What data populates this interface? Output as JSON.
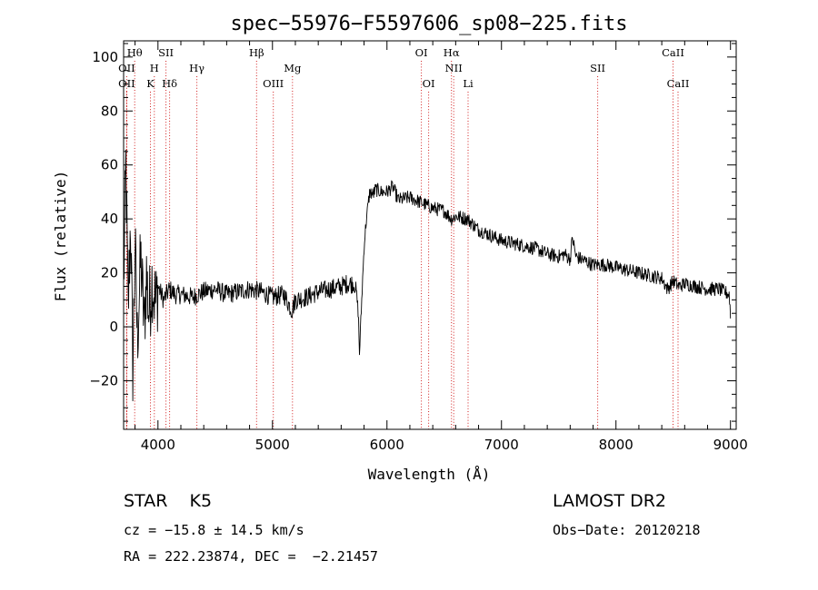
{
  "chart_data": {
    "type": "line",
    "title": "spec−55976−F5597606_sp08−225.fits",
    "xlabel": "Wavelength (Å)",
    "ylabel": "Flux (relative)",
    "xlim": [
      3700,
      9050
    ],
    "ylim": [
      -38,
      106
    ],
    "x_ticks": [
      4000,
      5000,
      6000,
      7000,
      8000,
      9000
    ],
    "x_tick_labels": [
      "4000",
      "5000",
      "6000",
      "7000",
      "8000",
      "9000"
    ],
    "y_ticks": [
      -20,
      0,
      20,
      40,
      60,
      80,
      100
    ],
    "y_tick_labels": [
      "−20",
      "0",
      "20",
      "40",
      "60",
      "80",
      "100"
    ],
    "grid": false,
    "series": [
      {
        "x": [
          3700,
          3720,
          3740,
          3760,
          3780,
          3800,
          3820,
          3850,
          3880,
          3900,
          3920,
          3950,
          3980,
          4000,
          4050,
          4100,
          4150,
          4200,
          4300,
          4400,
          4500,
          4600,
          4700,
          4800,
          4900,
          5000,
          5100,
          5170,
          5200,
          5300,
          5400,
          5500,
          5600,
          5650,
          5700,
          5730,
          5750,
          5760,
          5770,
          5780,
          5800,
          5820,
          5850,
          5880,
          5900,
          5950,
          6000,
          6050,
          6100,
          6200,
          6300,
          6400,
          6500,
          6563,
          6600,
          6700,
          6800,
          6900,
          7000,
          7100,
          7200,
          7300,
          7400,
          7500,
          7550,
          7600,
          7620,
          7650,
          7700,
          7800,
          7900,
          8000,
          8100,
          8200,
          8300,
          8400,
          8450,
          8500,
          8550,
          8600,
          8700,
          8800,
          8900,
          8990,
          9000
        ],
        "y": [
          15,
          60,
          5,
          40,
          -15,
          30,
          -5,
          25,
          0,
          20,
          5,
          18,
          8,
          15,
          10,
          14,
          12,
          12,
          11,
          13,
          14,
          12,
          13,
          14,
          13,
          11,
          12,
          6,
          10,
          11,
          13,
          14,
          15,
          16,
          16,
          14,
          5,
          -10,
          0,
          10,
          30,
          40,
          50,
          49,
          51,
          50,
          50,
          52,
          47,
          48,
          46,
          44,
          43,
          40,
          41,
          40,
          36,
          34,
          32,
          31,
          30,
          29,
          27,
          26,
          27,
          25,
          33,
          26,
          25,
          23,
          23,
          22,
          21,
          20,
          19,
          18,
          14,
          17,
          15,
          16,
          15,
          14,
          14,
          12,
          4
        ]
      }
    ],
    "spectral_lines": [
      {
        "label": "Hθ",
        "x": 3797,
        "row": "top"
      },
      {
        "label": "OII",
        "x": 3727,
        "row": "mid"
      },
      {
        "label": "OII",
        "x": 3727,
        "row": "low"
      },
      {
        "label": "SII",
        "x": 4070,
        "row": "top"
      },
      {
        "label": "H",
        "x": 3968,
        "row": "mid"
      },
      {
        "label": "K",
        "x": 3934,
        "row": "low"
      },
      {
        "label": "Hδ",
        "x": 4102,
        "row": "low"
      },
      {
        "label": "Hγ",
        "x": 4340,
        "row": "mid"
      },
      {
        "label": "Hβ",
        "x": 4861,
        "row": "top"
      },
      {
        "label": "Mg",
        "x": 5175,
        "row": "mid"
      },
      {
        "label": "OIII",
        "x": 5007,
        "row": "low"
      },
      {
        "label": "OI",
        "x": 6300,
        "row": "top"
      },
      {
        "label": "Hα",
        "x": 6563,
        "row": "top"
      },
      {
        "label": "NII",
        "x": 6583,
        "row": "mid"
      },
      {
        "label": "OI",
        "x": 6364,
        "row": "low"
      },
      {
        "label": "Li",
        "x": 6708,
        "row": "low"
      },
      {
        "label": "SII",
        "x": 7840,
        "row": "mid"
      },
      {
        "label": "CaII",
        "x": 8498,
        "row": "top"
      },
      {
        "label": "CaII",
        "x": 8542,
        "row": "low"
      }
    ]
  },
  "info": {
    "class_text": "STAR    K5",
    "cz_text": "cz = −15.8 ± 14.5 km/s",
    "radec_text": "RA = 222.23874, DEC =  −2.21457",
    "survey_text": "LAMOST DR2",
    "obsdate_text": "Obs−Date: 20120218"
  }
}
